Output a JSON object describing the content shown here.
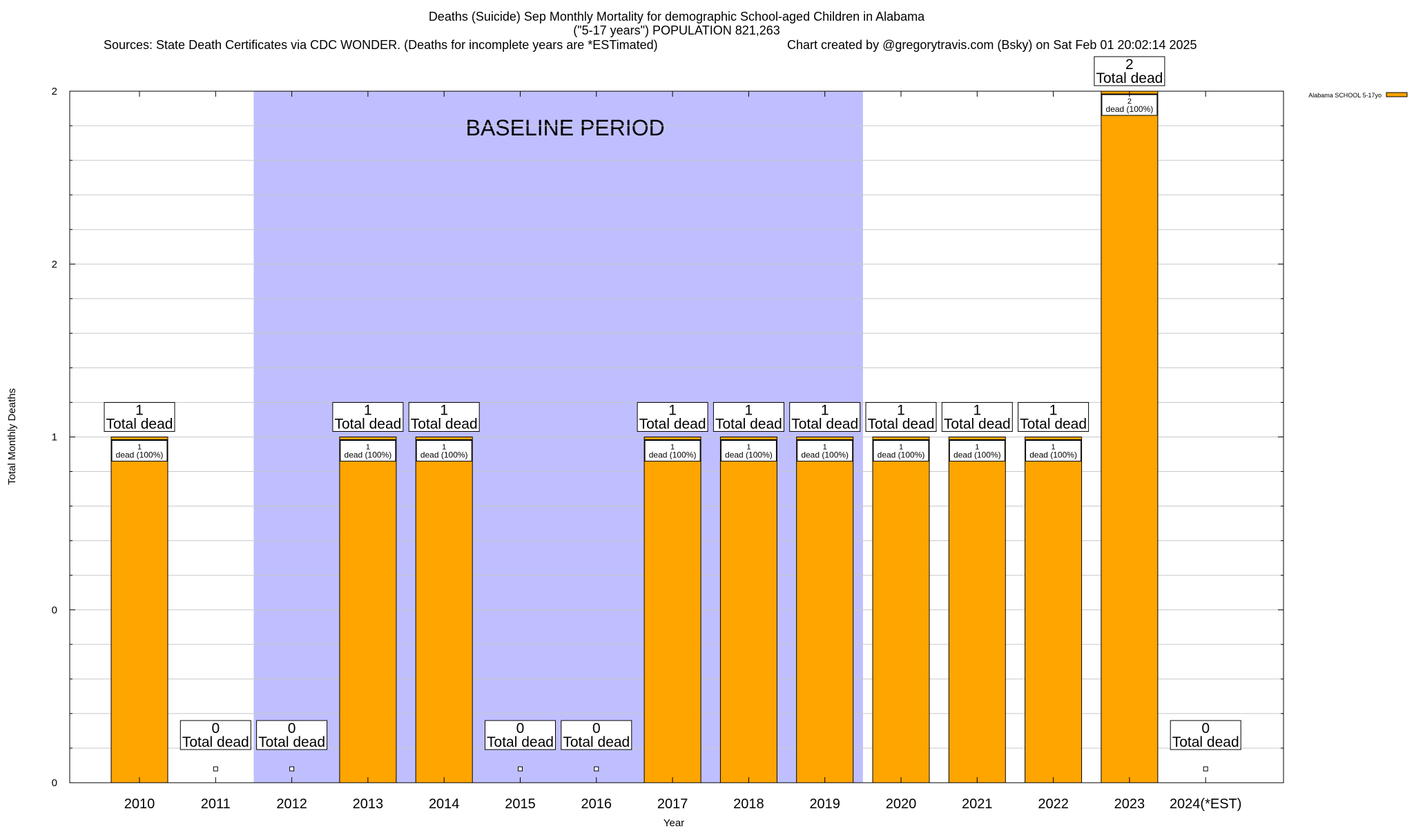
{
  "header": {
    "title_line1": "Deaths (Suicide) Sep Monthly Mortality for demographic School-aged Children in Alabama",
    "title_line2": "(\"5-17 years\") POPULATION 821,263",
    "sources": "Sources: State Death Certificates via CDC WONDER. (Deaths for incomplete years are *ESTimated)",
    "credit": "Chart created by @gregorytravis.com (Bsky) on Sat Feb 01 20:02:14 2025"
  },
  "chart_data": {
    "type": "bar",
    "xlabel": "Year",
    "ylabel": "Total Monthly Deaths",
    "ylim": [
      0,
      2
    ],
    "ytick_labels": [
      "0",
      "0",
      "1",
      "2",
      "2"
    ],
    "grid": true,
    "legend_position": "top-right",
    "shaded_region": {
      "label": "BASELINE PERIOD",
      "from": "2012",
      "to": "2019",
      "color": "#bfbfff"
    },
    "categories": [
      "2010",
      "2011",
      "2012",
      "2013",
      "2014",
      "2015",
      "2016",
      "2017",
      "2018",
      "2019",
      "2020",
      "2021",
      "2022",
      "2023",
      "2024(*EST)"
    ],
    "series": [
      {
        "name": "Alabama SCHOOL 5-17yo",
        "color": "#ffa500",
        "values": [
          1,
          0,
          0,
          1,
          1,
          0,
          0,
          1,
          1,
          1,
          1,
          1,
          1,
          2,
          0
        ]
      }
    ],
    "total_label_text": "Total dead",
    "bar_label_text": "dead (100%)"
  }
}
